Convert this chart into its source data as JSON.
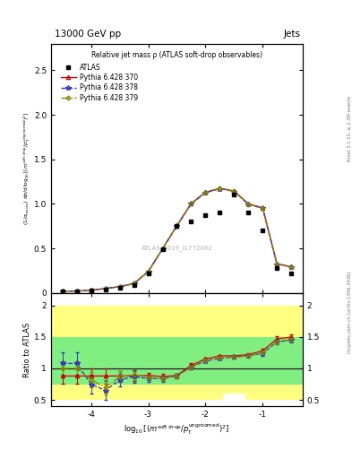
{
  "title_top": "13000 GeV pp",
  "title_right": "Jets",
  "plot_title": "Relative jet mass ρ (ATLAS soft-drop observables)",
  "watermark": "ATLAS_2019_I1772062",
  "right_label": "Rivet 3.1.10, ≥ 2.3M events",
  "right_label2": "mcplots.cern.ch [arXiv:1306.3436]",
  "xlim": [
    -4.7,
    -0.3
  ],
  "ylim_main": [
    0.0,
    2.8
  ],
  "ylim_ratio": [
    0.4,
    2.2
  ],
  "xc": [
    -4.5,
    -4.25,
    -4.0,
    -3.75,
    -3.5,
    -3.25,
    -3.0,
    -2.75,
    -2.5,
    -2.25,
    -2.0,
    -1.75,
    -1.5,
    -1.25,
    -1.0,
    -0.75,
    -0.5
  ],
  "atlas_y": [
    0.02,
    0.02,
    0.03,
    0.04,
    0.06,
    0.09,
    0.22,
    0.49,
    0.75,
    0.8,
    0.87,
    0.9,
    1.1,
    0.9,
    0.7,
    0.28,
    0.22
  ],
  "py370_y": [
    0.02,
    0.02,
    0.03,
    0.05,
    0.07,
    0.105,
    0.24,
    0.497,
    0.755,
    1.005,
    1.13,
    1.175,
    1.145,
    1.0,
    0.955,
    0.325,
    0.295
  ],
  "py378_y": [
    0.02,
    0.02,
    0.03,
    0.05,
    0.07,
    0.105,
    0.24,
    0.495,
    0.752,
    1.0,
    1.125,
    1.17,
    1.14,
    0.995,
    0.95,
    0.322,
    0.292
  ],
  "py379_y": [
    0.02,
    0.02,
    0.03,
    0.05,
    0.07,
    0.105,
    0.24,
    0.496,
    0.754,
    1.002,
    1.128,
    1.172,
    1.142,
    0.997,
    0.952,
    0.323,
    0.293
  ],
  "ratio370_y": [
    0.88,
    0.88,
    0.88,
    0.88,
    0.88,
    0.88,
    0.89,
    0.87,
    0.89,
    1.05,
    1.15,
    1.2,
    1.2,
    1.22,
    1.28,
    1.47,
    1.5
  ],
  "ratio378_y": [
    1.08,
    1.08,
    0.75,
    0.65,
    0.82,
    0.87,
    0.84,
    0.84,
    0.88,
    1.02,
    1.12,
    1.16,
    1.18,
    1.2,
    1.24,
    1.42,
    1.45
  ],
  "ratio379_y": [
    1.0,
    1.0,
    0.82,
    0.7,
    0.87,
    0.9,
    0.86,
    0.84,
    0.88,
    1.02,
    1.13,
    1.17,
    1.18,
    1.2,
    1.25,
    1.43,
    1.46
  ],
  "err370": [
    0.12,
    0.12,
    0.12,
    0.12,
    0.08,
    0.08,
    0.04,
    0.04,
    0.03,
    0.03,
    0.02,
    0.02,
    0.02,
    0.02,
    0.04,
    0.04,
    0.04
  ],
  "err378": [
    0.18,
    0.18,
    0.15,
    0.15,
    0.1,
    0.1,
    0.05,
    0.05,
    0.03,
    0.03,
    0.02,
    0.02,
    0.02,
    0.02,
    0.04,
    0.04,
    0.04
  ],
  "err379": [
    0.12,
    0.12,
    0.12,
    0.12,
    0.08,
    0.08,
    0.04,
    0.04,
    0.03,
    0.03,
    0.02,
    0.02,
    0.02,
    0.02,
    0.04,
    0.04,
    0.04
  ],
  "band_yellow_x": [
    -4.7,
    -4.3,
    -4.3,
    -3.7,
    -3.7,
    -2.3,
    -2.3,
    -1.7,
    -1.7,
    -1.3,
    -1.3,
    -0.7,
    -0.7,
    -0.3
  ],
  "band_yellow_lo": [
    0.5,
    0.5,
    0.5,
    0.5,
    0.5,
    0.5,
    0.5,
    0.5,
    0.6,
    0.6,
    0.6,
    0.5,
    0.5,
    0.5
  ],
  "band_yellow_hi": [
    2.0,
    2.0,
    2.0,
    2.0,
    2.0,
    2.0,
    2.0,
    2.0,
    2.0,
    2.0,
    2.0,
    2.0,
    2.0,
    2.0
  ],
  "band_green_x": [
    -4.7,
    -4.3,
    -4.3,
    -3.7,
    -3.7,
    -2.3,
    -2.3,
    -1.7,
    -1.7,
    -1.3,
    -1.3,
    -0.7,
    -0.7,
    -0.3
  ],
  "band_green_lo": [
    0.75,
    0.75,
    0.75,
    0.75,
    0.75,
    0.75,
    0.75,
    0.75,
    0.75,
    0.75,
    0.75,
    0.75,
    0.75,
    0.75
  ],
  "band_green_hi": [
    1.5,
    1.5,
    1.5,
    1.5,
    1.5,
    1.5,
    1.5,
    1.5,
    1.5,
    1.5,
    1.5,
    1.5,
    1.5,
    1.5
  ],
  "color_py370": "#cc0000",
  "color_py378": "#3333cc",
  "color_py379": "#888800",
  "color_yellow": "#ffff80",
  "color_green": "#80ee80",
  "xticks": [
    -4,
    -3,
    -2,
    -1
  ],
  "yticks_main": [
    0,
    0.5,
    1.0,
    1.5,
    2.0,
    2.5
  ],
  "yticks_ratio": [
    0.5,
    1.0,
    1.5,
    2.0
  ]
}
